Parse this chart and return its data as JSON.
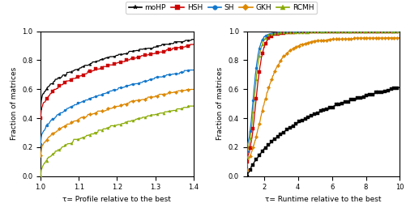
{
  "legend_labels": [
    "moHP",
    "HSH",
    "SH",
    "GKH",
    "RCMH"
  ],
  "colors": [
    "black",
    "#cc0000",
    "#1177cc",
    "#dd8800",
    "#88aa00"
  ],
  "markers_left": [
    "*",
    "s",
    "o",
    "D",
    "^"
  ],
  "markers_right": [
    "s",
    "s",
    "o",
    "D",
    "^"
  ],
  "ylabel": "Fraction of matrices",
  "xlabel_left": "τ= Profile relative to the best",
  "xlabel_right": "τ= Runtime relative to the best",
  "xlim_left": [
    1.0,
    1.4
  ],
  "xlim_right": [
    1.0,
    10.0
  ],
  "ylim": [
    0.0,
    1.0
  ],
  "xticks_left": [
    1.0,
    1.1,
    1.2,
    1.3,
    1.4
  ],
  "xticks_right": [
    2,
    4,
    6,
    8,
    10
  ],
  "yticks": [
    0.0,
    0.2,
    0.4,
    0.6,
    0.8,
    1.0
  ]
}
